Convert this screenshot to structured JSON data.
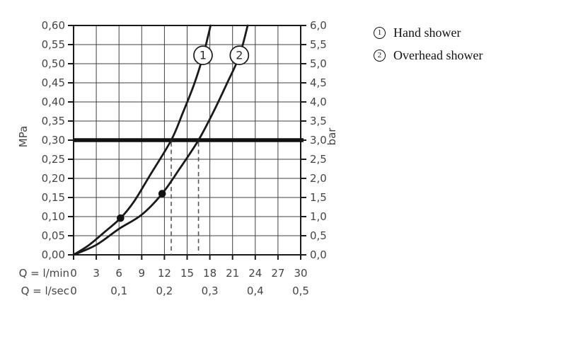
{
  "colors": {
    "background": "#ffffff",
    "curve": "#1a1a1a",
    "grid": "#3f3f3f",
    "border": "#1a1a1a",
    "reference_line": "#111111",
    "dashed_line": "#555555",
    "axis_text": "#454545",
    "legend_text": "#111111",
    "label_circle_fill": "#ffffff"
  },
  "chart_data": {
    "type": "line",
    "title": "",
    "x_axis": {
      "primary_label": "Q = l/min",
      "secondary_label": "Q = l/sec",
      "primary_ticks": [
        "0",
        "3",
        "6",
        "9",
        "12",
        "15",
        "18",
        "21",
        "24",
        "27",
        "30"
      ],
      "secondary_ticks": [
        {
          "q": 0,
          "text": "0"
        },
        {
          "q": 6,
          "text": "0,1"
        },
        {
          "q": 12,
          "text": "0,2"
        },
        {
          "q": 18,
          "text": "0,3"
        },
        {
          "q": 24,
          "text": "0,4"
        },
        {
          "q": 30,
          "text": "0,5"
        }
      ],
      "range_lmin": [
        0,
        30
      ],
      "grid_step_lmin": 3
    },
    "y_axis_left": {
      "label": "MPa",
      "range": [
        0,
        0.6
      ],
      "grid_step": 0.05,
      "ticks": [
        "0,00",
        "0,05",
        "0,10",
        "0,15",
        "0,20",
        "0,25",
        "0,30",
        "0,35",
        "0,40",
        "0,45",
        "0,50",
        "0,55",
        "0,60"
      ]
    },
    "y_axis_right": {
      "label": "bar",
      "range": [
        0,
        6
      ],
      "ticks": [
        "0,0",
        "0,5",
        "1,0",
        "1,5",
        "2,0",
        "2,5",
        "3,0",
        "3,5",
        "4,0",
        "4,5",
        "5,0",
        "5,5",
        "6,0"
      ]
    },
    "reference_line": {
      "mpa": 0.3,
      "bar": 3.0
    },
    "grid": true,
    "series": [
      {
        "label": "1",
        "name": "Hand shower",
        "points_q_mpa": [
          [
            0,
            0
          ],
          [
            2,
            0.025
          ],
          [
            4,
            0.058
          ],
          [
            6.2,
            0.096
          ],
          [
            8,
            0.14
          ],
          [
            10,
            0.205
          ],
          [
            12.9,
            0.3
          ],
          [
            14.4,
            0.37
          ],
          [
            15.9,
            0.445
          ],
          [
            17.1,
            0.52
          ],
          [
            18.1,
            0.6
          ]
        ],
        "marker_q_mpa": [
          6.2,
          0.096
        ],
        "label_pos_q_mpa": [
          17.1,
          0.522
        ],
        "dashed_line_q": 12.9
      },
      {
        "label": "2",
        "name": "Overhead shower",
        "points_q_mpa": [
          [
            0,
            0
          ],
          [
            3,
            0.026
          ],
          [
            6,
            0.068
          ],
          [
            9,
            0.105
          ],
          [
            11.7,
            0.16
          ],
          [
            14,
            0.225
          ],
          [
            16.5,
            0.3
          ],
          [
            18.5,
            0.375
          ],
          [
            20.3,
            0.45
          ],
          [
            21.9,
            0.52
          ],
          [
            23.0,
            0.6
          ]
        ],
        "marker_q_mpa": [
          11.7,
          0.16
        ],
        "label_pos_q_mpa": [
          21.9,
          0.522
        ],
        "dashed_line_q": 16.5
      }
    ],
    "legend_position": "top-right"
  },
  "legend": {
    "items": [
      {
        "symbol": "1",
        "label": "Hand shower"
      },
      {
        "symbol": "2",
        "label": "Overhead shower"
      }
    ]
  }
}
